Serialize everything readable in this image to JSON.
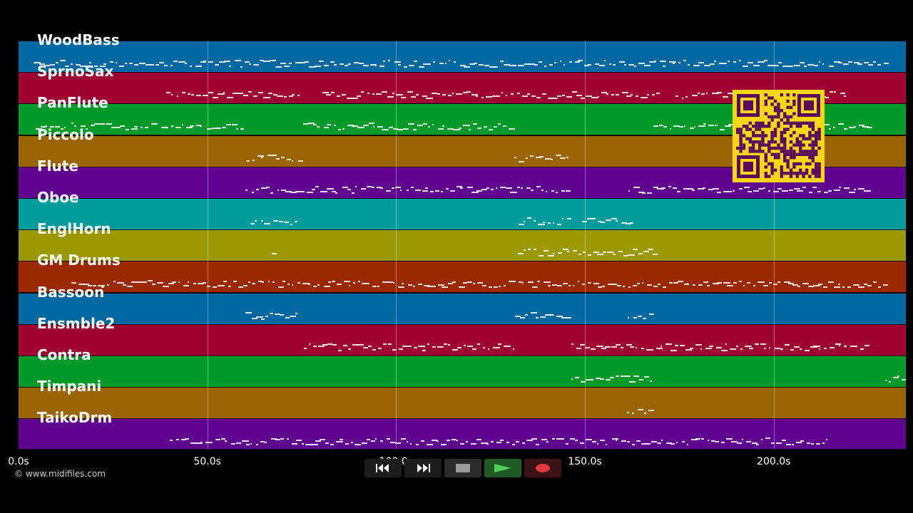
{
  "tracks": [
    {
      "name": "WoodBass",
      "color": "#0068a0"
    },
    {
      "name": "SprnoSax",
      "color": "#9e0034"
    },
    {
      "name": "PanFlute",
      "color": "#009a2a"
    },
    {
      "name": "Piccolo",
      "color": "#9c6400"
    },
    {
      "name": "Flute",
      "color": "#600090"
    },
    {
      "name": "Oboe",
      "color": "#009c9c"
    },
    {
      "name": "EnglHorn",
      "color": "#9a9a00"
    },
    {
      "name": "GM Drums",
      "color": "#9a2800"
    },
    {
      "name": "Bassoon",
      "color": "#0068a0"
    },
    {
      "name": "Ensmble2",
      "color": "#9e0034"
    },
    {
      "name": "Contra",
      "color": "#009a2a"
    },
    {
      "name": "Timpani",
      "color": "#9c6400"
    },
    {
      "name": "TaikoDrm",
      "color": "#600090"
    },
    {
      "name": "",
      "color": "#600090"
    }
  ],
  "timeline": {
    "max_seconds": 235,
    "ticks": [
      "0.0s",
      "50.0s",
      "100.0s",
      "150.0s",
      "200.0s"
    ],
    "tick_values": [
      0,
      50,
      100,
      150,
      200
    ]
  },
  "transport": {
    "rewind_icon": "rewind-icon",
    "fastforward_icon": "fast-forward-icon",
    "stop_icon": "stop-icon",
    "play_icon": "play-icon",
    "record_icon": "record-icon"
  },
  "copyright": "© www.midifiles.com",
  "note_regions": [
    {
      "track": 0,
      "segments": [
        [
          4,
          230
        ]
      ]
    },
    {
      "track": 1,
      "segments": [
        [
          39,
          75
        ],
        [
          80,
          170
        ],
        [
          174,
          190
        ],
        [
          197,
          220
        ]
      ]
    },
    {
      "track": 2,
      "segments": [
        [
          4,
          60
        ],
        [
          75,
          132
        ],
        [
          168,
          226
        ]
      ]
    },
    {
      "track": 3,
      "segments": [
        [
          60,
          75
        ],
        [
          131,
          146
        ]
      ]
    },
    {
      "track": 4,
      "segments": [
        [
          60,
          146
        ],
        [
          161,
          226
        ]
      ]
    },
    {
      "track": 5,
      "segments": [
        [
          61,
          74
        ],
        [
          132,
          146
        ],
        [
          149,
          163
        ]
      ]
    },
    {
      "track": 6,
      "segments": [
        [
          67,
          68
        ],
        [
          132,
          169
        ]
      ]
    },
    {
      "track": 7,
      "segments": [
        [
          14,
          230
        ]
      ]
    },
    {
      "track": 8,
      "segments": [
        [
          60,
          74
        ],
        [
          131,
          146
        ],
        [
          161,
          168
        ]
      ]
    },
    {
      "track": 9,
      "segments": [
        [
          75,
          132
        ],
        [
          146,
          225
        ]
      ]
    },
    {
      "track": 10,
      "segments": [
        [
          146,
          168
        ],
        [
          229,
          235
        ]
      ]
    },
    {
      "track": 11,
      "segments": [
        [
          161,
          168
        ]
      ]
    },
    {
      "track": 12,
      "segments": [
        [
          40,
          215
        ]
      ]
    }
  ]
}
